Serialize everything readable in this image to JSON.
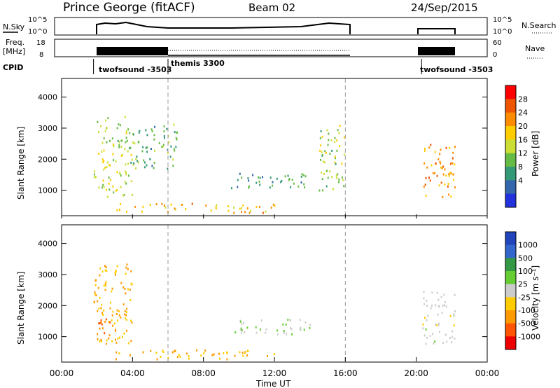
{
  "header": {
    "station": "Prince George (fitACF)",
    "beam": "Beam 02",
    "date": "24/Sep/2015"
  },
  "nsky_panel": {
    "left_label": "N.Sky",
    "left_ticks": [
      "10^5",
      "10^0"
    ],
    "right_ticks": [
      "10^5",
      "10^0"
    ],
    "right_label": "N.Search"
  },
  "freq_panel": {
    "left_label_1": "Freq.",
    "left_label_2": "[MHz]",
    "left_ticks": [
      "18",
      "8"
    ],
    "right_ticks": [
      "60",
      "0"
    ],
    "right_label": "Nave"
  },
  "cpid": {
    "label": "CPID",
    "entries": [
      "twofsound -3503",
      "themis 3300",
      "twofsound -3503"
    ]
  },
  "range_ticks": [
    "4000",
    "3000",
    "2000",
    "1000"
  ],
  "time_ticks": [
    "00:00",
    "04:00",
    "08:00",
    "12:00",
    "16:00",
    "20:00",
    "00:00"
  ],
  "ylabel": "Slant Range [km]",
  "xlabel": "Time UT",
  "power_colorbar": {
    "label": "Power [dB]",
    "ticks": [
      "28",
      "24",
      "20",
      "16",
      "12",
      "8",
      "4"
    ],
    "colors": [
      "#ff0000",
      "#ee5500",
      "#ff8c00",
      "#ffcc00",
      "#ccdd33",
      "#66bb44",
      "#339977",
      "#3366aa",
      "#2233dd"
    ]
  },
  "velocity_colorbar": {
    "label": "Velocity [m s⁻¹]",
    "ticks": [
      "1000",
      "500",
      "100",
      "25",
      "-25",
      "-100",
      "-500",
      "-1000"
    ],
    "colors": [
      "#2244bb",
      "#3366cc",
      "#339944",
      "#66cc33",
      "#cccccc",
      "#ffcc00",
      "#ff9900",
      "#ff5500",
      "#ee0000"
    ]
  },
  "chart_data": {
    "type": "heatmap",
    "x_unit": "hours UT",
    "xlim": [
      0,
      24
    ],
    "ylim": [
      180,
      4600
    ],
    "dashed_lines_hours": [
      6.0,
      16.0
    ],
    "data_gaps_hours": [
      [
        16.0,
        20.3
      ],
      [
        22.2,
        24.0
      ]
    ],
    "cpid_segments": [
      {
        "name": "twofsound -3503",
        "start": 1.8,
        "end": 6.0
      },
      {
        "name": "themis 3300",
        "start": 6.0,
        "end": 16.0
      },
      {
        "name": "twofsound -3503",
        "start": 20.3,
        "end": 22.2
      }
    ],
    "power_regions": [
      {
        "t": [
          1.8,
          4.0
        ],
        "r": [
          800,
          3400
        ],
        "level_db": 14
      },
      {
        "t": [
          4.0,
          6.5
        ],
        "r": [
          1700,
          3200
        ],
        "level_db": 10
      },
      {
        "t": [
          3.0,
          12.0
        ],
        "r": [
          300,
          600
        ],
        "level_db": 20
      },
      {
        "t": [
          9.5,
          14.0
        ],
        "r": [
          1100,
          1600
        ],
        "level_db": 8
      },
      {
        "t": [
          14.5,
          16.0
        ],
        "r": [
          1000,
          3200
        ],
        "level_db": 14
      },
      {
        "t": [
          20.3,
          22.2
        ],
        "r": [
          800,
          2500
        ],
        "level_db": 22
      }
    ],
    "velocity_regions": [
      {
        "t": [
          1.8,
          4.0
        ],
        "r": [
          800,
          3400
        ],
        "velocity": -100
      },
      {
        "t": [
          2.0,
          3.0
        ],
        "r": [
          800,
          1600
        ],
        "velocity": -500
      },
      {
        "t": [
          3.0,
          12.0
        ],
        "r": [
          300,
          600
        ],
        "velocity": -100
      },
      {
        "t": [
          9.5,
          14.0
        ],
        "r": [
          1100,
          1600
        ],
        "velocity": 25
      },
      {
        "t": [
          20.3,
          22.2
        ],
        "r": [
          800,
          2500
        ],
        "velocity": 0
      }
    ]
  }
}
